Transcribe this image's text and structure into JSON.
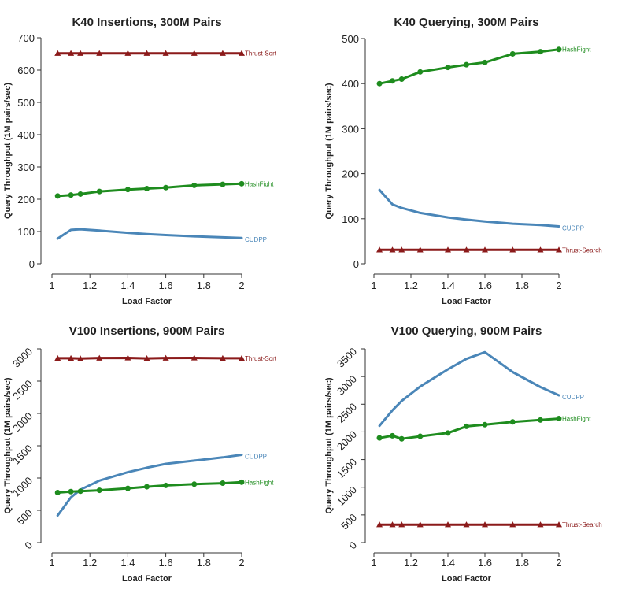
{
  "chart_data": [
    {
      "type": "line",
      "title": "K40 Insertions, 300M Pairs",
      "xlabel": "Load Factor",
      "ylabel": "Query Throughput (1M pairs/sec)",
      "xlim": [
        1.0,
        2.0
      ],
      "ylim": [
        0,
        700
      ],
      "xticks": [
        1,
        1.2,
        1.4,
        1.6,
        1.8,
        2
      ],
      "xtick_labels": [
        "1",
        "1.2",
        "1.4",
        "1.6",
        "1.8",
        "2"
      ],
      "yticks": [
        0,
        100,
        200,
        300,
        400,
        500,
        600,
        700
      ],
      "ytick_labels": [
        "0",
        "100",
        "200",
        "300",
        "400",
        "500",
        "600",
        "700"
      ],
      "ytick_rotated": false,
      "grid": false,
      "series": [
        {
          "name": "Thrust-Sort",
          "color": "#8b1a1a",
          "marker": "triangle",
          "x": [
            1.03,
            1.1,
            1.15,
            1.25,
            1.4,
            1.5,
            1.6,
            1.75,
            1.9,
            2.0
          ],
          "y": [
            652,
            652,
            652,
            652,
            652,
            652,
            652,
            652,
            652,
            652
          ]
        },
        {
          "name": "HashFight",
          "color": "#1e8c1e",
          "marker": "circle",
          "x": [
            1.03,
            1.1,
            1.15,
            1.25,
            1.4,
            1.5,
            1.6,
            1.75,
            1.9,
            2.0
          ],
          "y": [
            210,
            213,
            216,
            224,
            230,
            233,
            236,
            243,
            246,
            248
          ]
        },
        {
          "name": "CUDPP",
          "color": "#4a86b8",
          "marker": "none",
          "x": [
            1.03,
            1.1,
            1.15,
            1.25,
            1.4,
            1.5,
            1.6,
            1.75,
            1.9,
            2.0
          ],
          "y": [
            78,
            105,
            107,
            103,
            96,
            92,
            89,
            85,
            82,
            80
          ]
        }
      ]
    },
    {
      "type": "line",
      "title": "K40 Querying, 300M Pairs",
      "xlabel": "Load Factor",
      "ylabel": "Query Throughput (1M pairs/sec)",
      "xlim": [
        1.0,
        2.0
      ],
      "ylim": [
        0,
        500
      ],
      "xticks": [
        1,
        1.2,
        1.4,
        1.6,
        1.8,
        2
      ],
      "xtick_labels": [
        "1",
        "1.2",
        "1.4",
        "1.6",
        "1.8",
        "2"
      ],
      "yticks": [
        0,
        100,
        200,
        300,
        400,
        500
      ],
      "ytick_labels": [
        "0",
        "100",
        "200",
        "300",
        "400",
        "500"
      ],
      "ytick_rotated": false,
      "grid": false,
      "series": [
        {
          "name": "HashFight",
          "color": "#1e8c1e",
          "marker": "circle",
          "x": [
            1.03,
            1.1,
            1.15,
            1.25,
            1.4,
            1.5,
            1.6,
            1.75,
            1.9,
            2.0
          ],
          "y": [
            400,
            406,
            410,
            426,
            436,
            442,
            447,
            466,
            471,
            476
          ]
        },
        {
          "name": "CUDPP",
          "color": "#4a86b8",
          "marker": "none",
          "x": [
            1.03,
            1.1,
            1.15,
            1.25,
            1.4,
            1.5,
            1.6,
            1.75,
            1.9,
            2.0
          ],
          "y": [
            164,
            132,
            124,
            113,
            103,
            98,
            94,
            89,
            86,
            83
          ]
        },
        {
          "name": "Thrust-Search",
          "color": "#8b1a1a",
          "marker": "triangle",
          "x": [
            1.03,
            1.1,
            1.15,
            1.25,
            1.4,
            1.5,
            1.6,
            1.75,
            1.9,
            2.0
          ],
          "y": [
            31,
            31,
            31,
            31,
            31,
            31,
            31,
            31,
            31,
            31
          ]
        }
      ]
    },
    {
      "type": "line",
      "title": "V100 Insertions, 900M Pairs",
      "xlabel": "Load Factor",
      "ylabel": "Query Throughput (1M pairs/sec)",
      "xlim": [
        1.0,
        2.0
      ],
      "ylim": [
        0,
        3000
      ],
      "xticks": [
        1,
        1.2,
        1.4,
        1.6,
        1.8,
        2
      ],
      "xtick_labels": [
        "1",
        "1.2",
        "1.4",
        "1.6",
        "1.8",
        "2"
      ],
      "yticks": [
        0,
        500,
        1000,
        1500,
        2000,
        2500,
        3000
      ],
      "ytick_labels": [
        "0",
        "500",
        "1000",
        "1500",
        "2000",
        "2500",
        "3000"
      ],
      "ytick_rotated": true,
      "grid": false,
      "series": [
        {
          "name": "Thrust-Sort",
          "color": "#8b1a1a",
          "marker": "triangle",
          "x": [
            1.03,
            1.1,
            1.15,
            1.25,
            1.4,
            1.5,
            1.6,
            1.75,
            1.9,
            2.0
          ],
          "y": [
            2855,
            2855,
            2850,
            2858,
            2860,
            2853,
            2858,
            2860,
            2855,
            2855
          ]
        },
        {
          "name": "CUDPP",
          "color": "#4a86b8",
          "marker": "none",
          "x": [
            1.03,
            1.1,
            1.15,
            1.25,
            1.4,
            1.5,
            1.6,
            1.75,
            1.9,
            2.0
          ],
          "y": [
            420,
            700,
            820,
            960,
            1090,
            1160,
            1220,
            1270,
            1320,
            1360
          ]
        },
        {
          "name": "HashFight",
          "color": "#1e8c1e",
          "marker": "circle",
          "x": [
            1.03,
            1.1,
            1.15,
            1.25,
            1.4,
            1.5,
            1.6,
            1.75,
            1.9,
            2.0
          ],
          "y": [
            775,
            790,
            795,
            810,
            840,
            865,
            885,
            905,
            920,
            935
          ]
        }
      ]
    },
    {
      "type": "line",
      "title": "V100 Querying, 900M Pairs",
      "xlabel": "Load Factor",
      "ylabel": "Query Throughput (1M pairs/sec)",
      "xlim": [
        1.0,
        2.0
      ],
      "ylim": [
        0,
        3500
      ],
      "xticks": [
        1,
        1.2,
        1.4,
        1.6,
        1.8,
        2
      ],
      "xtick_labels": [
        "1",
        "1.2",
        "1.4",
        "1.6",
        "1.8",
        "2"
      ],
      "yticks": [
        0,
        500,
        1000,
        1500,
        2000,
        2500,
        3000,
        3500
      ],
      "ytick_labels": [
        "0",
        "500",
        "1000",
        "1500",
        "2000",
        "2500",
        "3000",
        "3500"
      ],
      "ytick_rotated": true,
      "grid": false,
      "series": [
        {
          "name": "CUDPP",
          "color": "#4a86b8",
          "marker": "none",
          "x": [
            1.03,
            1.1,
            1.15,
            1.25,
            1.4,
            1.5,
            1.6,
            1.75,
            1.9,
            2.0
          ],
          "y": [
            2110,
            2390,
            2560,
            2820,
            3130,
            3320,
            3440,
            3080,
            2810,
            2660
          ]
        },
        {
          "name": "HashFight",
          "color": "#1e8c1e",
          "marker": "circle",
          "x": [
            1.03,
            1.1,
            1.15,
            1.25,
            1.4,
            1.5,
            1.6,
            1.75,
            1.9,
            2.0
          ],
          "y": [
            1890,
            1930,
            1875,
            1920,
            1980,
            2100,
            2130,
            2180,
            2215,
            2240
          ]
        },
        {
          "name": "Thrust-Search",
          "color": "#8b1a1a",
          "marker": "triangle",
          "x": [
            1.03,
            1.1,
            1.15,
            1.25,
            1.4,
            1.5,
            1.6,
            1.75,
            1.9,
            2.0
          ],
          "y": [
            325,
            325,
            325,
            325,
            325,
            325,
            325,
            325,
            325,
            325
          ]
        }
      ]
    }
  ]
}
